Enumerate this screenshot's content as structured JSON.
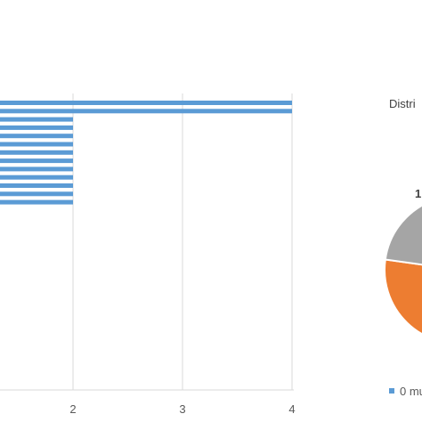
{
  "chart_data": [
    {
      "type": "bar",
      "orientation": "horizontal",
      "x_ticks": [
        "2",
        "3",
        "4"
      ],
      "xlim": [
        0,
        4
      ],
      "grid": true,
      "values": [
        4,
        4,
        2,
        2,
        2,
        2,
        2,
        2,
        2,
        2,
        2,
        2,
        2
      ],
      "color": "#5B9BD5"
    },
    {
      "type": "pie",
      "title": "Distri",
      "slice_labels": [
        "1"
      ],
      "legend": [
        "0 mu"
      ],
      "legend_position": "bottom",
      "colors": {
        "blue": "#5B9BD5",
        "orange": "#ED7D31",
        "gray": "#A5A5A5"
      }
    }
  ]
}
